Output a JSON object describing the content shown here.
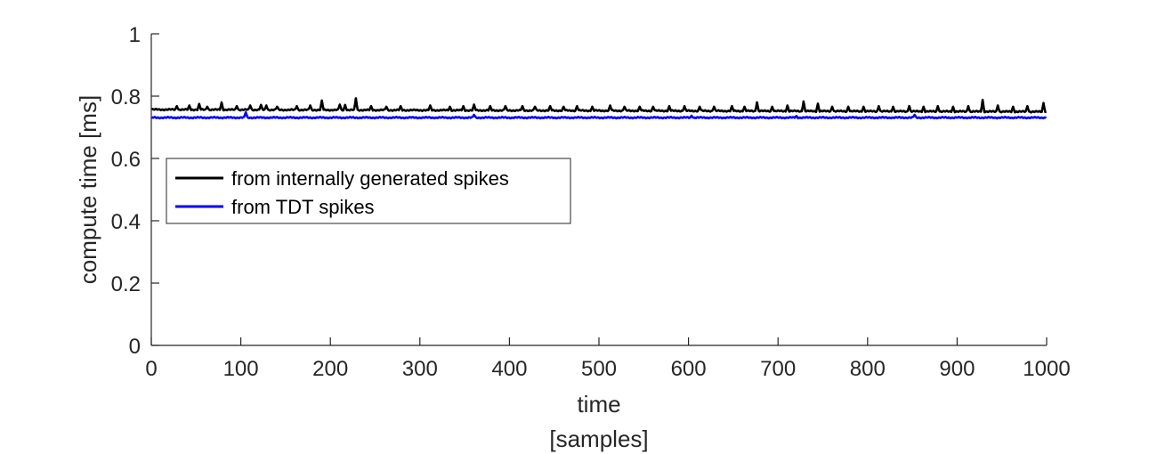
{
  "chart_data": {
    "type": "line",
    "title": "",
    "xlabel": [
      "time",
      "[samples]"
    ],
    "ylabel": "compute time [ms]",
    "xlim": [
      0,
      1000
    ],
    "ylim": [
      0,
      1
    ],
    "xticks": [
      0,
      100,
      200,
      300,
      400,
      500,
      600,
      700,
      800,
      900,
      1000
    ],
    "yticks": [
      0,
      0.2,
      0.4,
      0.6,
      0.8,
      1
    ],
    "ytick_labels": [
      "0",
      "0.2",
      "0.4",
      "0.6",
      "0.8",
      "1"
    ],
    "grid": false,
    "legend_position": "left",
    "series": [
      {
        "name": "from internally generated spikes",
        "color": "#000000",
        "baseline_start": 0.757,
        "baseline_end": 0.75,
        "spikes": [
          [
            28,
            0.768
          ],
          [
            42,
            0.77
          ],
          [
            53,
            0.775
          ],
          [
            62,
            0.766
          ],
          [
            78,
            0.78
          ],
          [
            95,
            0.768
          ],
          [
            110,
            0.77
          ],
          [
            122,
            0.772
          ],
          [
            128,
            0.77
          ],
          [
            140,
            0.766
          ],
          [
            162,
            0.768
          ],
          [
            177,
            0.77
          ],
          [
            190,
            0.786
          ],
          [
            210,
            0.773
          ],
          [
            216,
            0.772
          ],
          [
            228,
            0.793
          ],
          [
            245,
            0.768
          ],
          [
            262,
            0.766
          ],
          [
            278,
            0.768
          ],
          [
            311,
            0.77
          ],
          [
            333,
            0.766
          ],
          [
            348,
            0.768
          ],
          [
            360,
            0.773
          ],
          [
            378,
            0.768
          ],
          [
            395,
            0.768
          ],
          [
            414,
            0.768
          ],
          [
            428,
            0.766
          ],
          [
            445,
            0.768
          ],
          [
            460,
            0.766
          ],
          [
            475,
            0.768
          ],
          [
            492,
            0.766
          ],
          [
            512,
            0.77
          ],
          [
            528,
            0.766
          ],
          [
            545,
            0.766
          ],
          [
            560,
            0.766
          ],
          [
            578,
            0.768
          ],
          [
            595,
            0.768
          ],
          [
            612,
            0.766
          ],
          [
            628,
            0.766
          ],
          [
            648,
            0.768
          ],
          [
            662,
            0.766
          ],
          [
            676,
            0.78
          ],
          [
            693,
            0.766
          ],
          [
            710,
            0.77
          ],
          [
            728,
            0.783
          ],
          [
            744,
            0.776
          ],
          [
            760,
            0.766
          ],
          [
            778,
            0.766
          ],
          [
            795,
            0.766
          ],
          [
            812,
            0.768
          ],
          [
            828,
            0.766
          ],
          [
            846,
            0.768
          ],
          [
            862,
            0.766
          ],
          [
            878,
            0.768
          ],
          [
            895,
            0.766
          ],
          [
            912,
            0.768
          ],
          [
            928,
            0.788
          ],
          [
            945,
            0.77
          ],
          [
            962,
            0.766
          ],
          [
            978,
            0.768
          ],
          [
            996,
            0.778
          ]
        ]
      },
      {
        "name": "from TDT spikes",
        "color": "#0000ff",
        "baseline_start": 0.731,
        "baseline_end": 0.731,
        "spikes": [
          [
            105,
            0.748
          ],
          [
            360,
            0.74
          ],
          [
            603,
            0.737
          ],
          [
            720,
            0.736
          ],
          [
            852,
            0.74
          ]
        ]
      }
    ]
  }
}
